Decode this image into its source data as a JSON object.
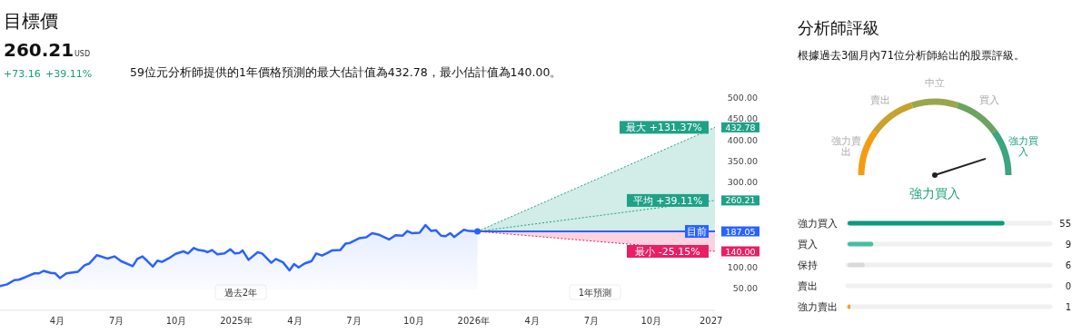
{
  "chart_data": [
    {
      "type": "line",
      "title": "目標價",
      "annotations": [
        "260.21",
        "USD",
        "+73.16",
        "+39.11%",
        "59位元分析師提供的1年價格預測的最大估計值為432.78，最小估計值為140.00。",
        "過去2年",
        "1年預測"
      ],
      "legend": "right",
      "xlim": [
        "2024-01-04",
        "2027-01-07"
      ],
      "xticks": [
        {
          "value": "2024-04-01",
          "label": "4月"
        },
        {
          "value": "2024-07-01",
          "label": "7月"
        },
        {
          "value": "2024-10-01",
          "label": "10月"
        },
        {
          "value": "2025-01-01",
          "label": "2025年"
        },
        {
          "value": "2025-04-01",
          "label": "4月"
        },
        {
          "value": "2025-07-01",
          "label": "7月"
        },
        {
          "value": "2025-10-01",
          "label": "10月"
        },
        {
          "value": "2026-01-01",
          "label": "2026年"
        },
        {
          "value": "2026-04-01",
          "label": "4月"
        },
        {
          "value": "2026-07-01",
          "label": "7月"
        },
        {
          "value": "2026-10-01",
          "label": "10月"
        },
        {
          "value": "2027-01-01",
          "label": "2027"
        }
      ],
      "ylim": [
        50,
        500
      ],
      "yticks": [
        {
          "value": 50,
          "label": "50.00"
        },
        {
          "value": 100,
          "label": "100.00"
        },
        {
          "value": 300,
          "label": "300.00"
        },
        {
          "value": 350,
          "label": "350.00"
        },
        {
          "value": 400,
          "label": "400.00"
        },
        {
          "value": 450,
          "label": "450.00"
        },
        {
          "value": 500,
          "label": "500.00"
        }
      ],
      "series": [
        {
          "type": "area",
          "color": "#2962ff",
          "x": [
            "2024-01-04",
            "2024-01-15",
            "2024-01-26",
            "2024-02-02",
            "2024-02-12",
            "2024-02-26",
            "2024-03-04",
            "2024-03-11",
            "2024-03-22",
            "2024-03-29",
            "2024-04-05",
            "2024-04-15",
            "2024-05-03",
            "2024-05-13",
            "2024-05-20",
            "2024-06-01",
            "2024-06-17",
            "2024-06-28",
            "2024-07-08",
            "2024-07-26",
            "2024-08-02",
            "2024-08-10",
            "2024-08-17",
            "2024-08-26",
            "2024-09-02",
            "2024-09-09",
            "2024-09-20",
            "2024-09-30",
            "2024-10-12",
            "2024-10-19",
            "2024-10-28",
            "2024-11-04",
            "2024-11-13",
            "2024-11-18",
            "2024-11-25",
            "2024-12-03",
            "2024-12-14",
            "2024-12-23",
            "2024-12-30",
            "2025-01-06",
            "2025-01-11",
            "2025-01-20",
            "2025-02-03",
            "2025-02-10",
            "2025-02-24",
            "2025-03-03",
            "2025-03-14",
            "2025-03-24",
            "2025-03-31",
            "2025-04-07",
            "2025-04-16",
            "2025-04-27",
            "2025-05-04",
            "2025-05-13",
            "2025-05-21",
            "2025-05-28",
            "2025-06-10",
            "2025-06-18",
            "2025-06-25",
            "2025-07-09",
            "2025-07-20",
            "2025-07-29",
            "2025-08-09",
            "2025-08-24",
            "2025-09-03",
            "2025-09-14",
            "2025-09-21",
            "2025-09-28",
            "2025-10-10",
            "2025-10-19",
            "2025-10-28",
            "2025-11-04",
            "2025-11-12",
            "2025-11-19",
            "2025-11-26",
            "2025-12-02",
            "2025-12-17",
            "2025-12-25",
            "2026-01-07"
          ],
          "values": [
            58,
            62,
            72,
            73,
            79,
            88,
            88,
            94,
            89,
            88,
            77,
            88,
            92,
            107,
            111,
            131,
            123,
            128,
            117,
            105,
            122,
            128,
            118,
            104,
            118,
            115,
            124,
            134,
            140,
            135,
            148,
            143,
            141,
            138,
            143,
            133,
            135,
            145,
            135,
            136,
            142,
            120,
            138,
            135,
            113,
            122,
            114,
            95,
            110,
            102,
            111,
            117,
            135,
            130,
            136,
            142,
            143,
            158,
            160,
            171,
            173,
            183,
            179,
            168,
            178,
            177,
            188,
            183,
            184,
            202,
            188,
            190,
            177,
            176,
            183,
            174,
            191,
            188,
            187.05
          ]
        },
        {
          "type": "line",
          "name": "目前",
          "color": "#2962ff",
          "x": [
            "2026-01-07",
            "2027-01-07"
          ],
          "values": [
            187.05,
            187.05
          ],
          "value_labels": [
            null,
            "187.05"
          ]
        },
        {
          "type": "line",
          "name": "最大 +131.37%",
          "color": "#1fa187",
          "line_style": "dotted",
          "x": [
            "2026-01-07",
            "2027-01-07"
          ],
          "values": [
            187.05,
            432.78
          ],
          "lower": [
            187.05,
            187.05
          ],
          "upper": [
            187.05,
            432.78
          ],
          "value_labels": [
            null,
            "432.78"
          ]
        },
        {
          "type": "line",
          "name": "平均 +39.11%",
          "color": "#1fa187",
          "line_style": "dotted",
          "x": [
            "2026-01-07",
            "2027-01-07"
          ],
          "values": [
            187.05,
            260.21
          ],
          "value_labels": [
            null,
            "260.21"
          ]
        },
        {
          "type": "line",
          "name": "最小 -25.15%",
          "color": "#e91e63",
          "line_style": "dotted",
          "x": [
            "2026-01-07",
            "2027-01-07"
          ],
          "values": [
            187.05,
            140.0
          ],
          "lower": [
            187.05,
            140.0
          ],
          "upper": [
            187.05,
            187.05
          ],
          "value_labels": [
            null,
            "140.00"
          ]
        },
        {
          "type": "scatter",
          "color": "#2962ff",
          "marker": "circle",
          "x": [
            "2026-01-07"
          ],
          "values": [
            187.05
          ]
        }
      ]
    },
    {
      "type": "donut",
      "title": "分析師評級",
      "subtitle": "根據過去3個月內71位分析師給出的股票評級。",
      "categories": [
        "強力賣出",
        "賣出",
        "中立",
        "買入",
        "強力買入"
      ],
      "values": [
        20,
        20,
        20,
        20,
        20
      ],
      "colors": [
        "#f39c12",
        "#c7a22c",
        "#9aa64c",
        "#6ba35f",
        "#3aa57e"
      ],
      "needle": "強力買入",
      "annotations": [
        "強力買入"
      ]
    },
    {
      "type": "bar",
      "orientation": "horizontal",
      "categories": [
        "強力買入",
        "買入",
        "保持",
        "賣出",
        "強力賣出"
      ],
      "values": [
        55,
        9,
        6,
        0,
        1
      ],
      "colors": [
        "#0b9a7c",
        "#44bfa3",
        "#d9d9d9",
        "#d9d9d9",
        "#f7a21b"
      ],
      "xlim": [
        0,
        71
      ],
      "data_labels": true,
      "grid": true
    }
  ]
}
